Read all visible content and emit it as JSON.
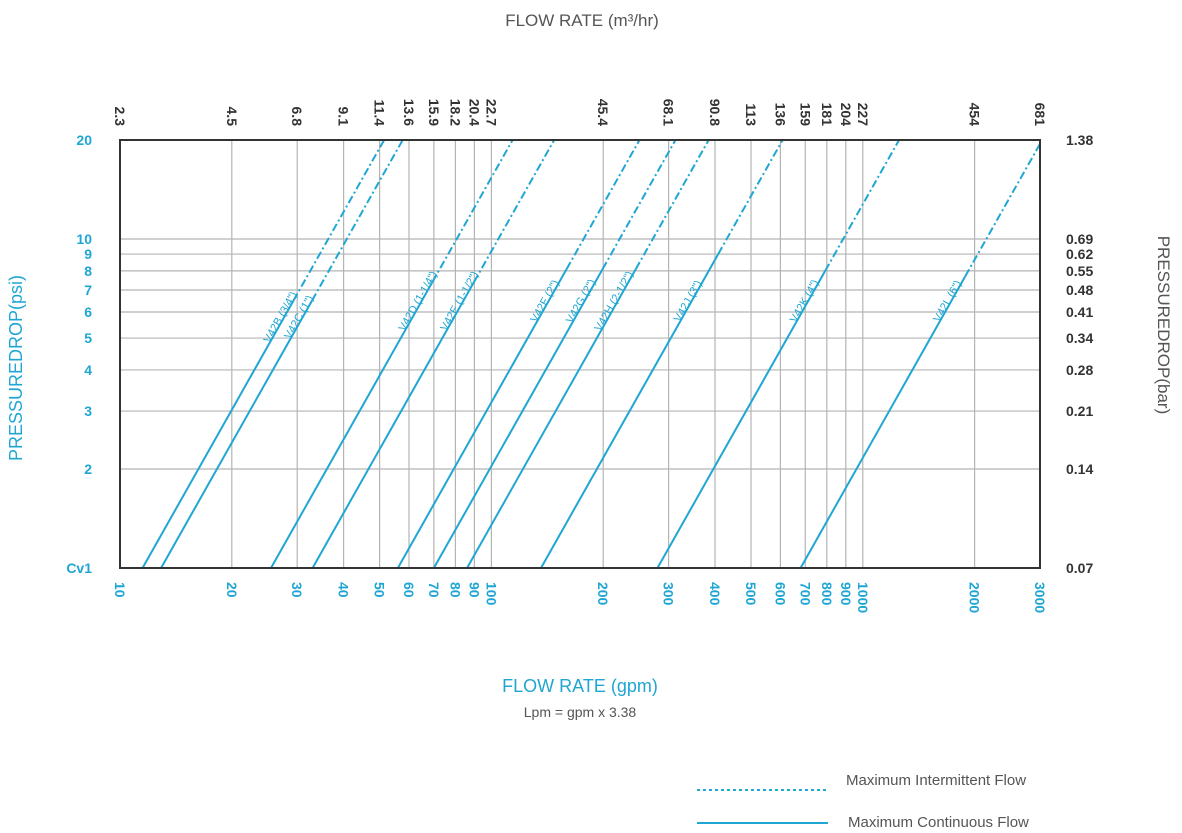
{
  "colors": {
    "series": "#1fa6d3",
    "grid": "#b4b4b4",
    "frame": "#333333",
    "dark_text": "#333333",
    "muted_text": "#555555"
  },
  "chart_data": {
    "type": "line",
    "title": "",
    "top_axis_label": "FLOW RATE (m³/hr)",
    "xlabel": "FLOW RATE (gpm)",
    "xlabel_note": "Lpm = gpm x 3.38",
    "ylabel_left": "PRESSUREDROP(psi)",
    "ylabel_right": "PRESSUREDROP(bar)",
    "x_scale": "log",
    "y_scale": "log",
    "xlim": [
      10,
      3000
    ],
    "ylim": [
      1,
      20
    ],
    "grid": true,
    "x_ticks": [
      10,
      20,
      30,
      40,
      50,
      60,
      70,
      80,
      90,
      100,
      200,
      300,
      400,
      500,
      600,
      700,
      800,
      900,
      1000,
      2000,
      3000
    ],
    "x_tick_labels": [
      "10",
      "20",
      "30",
      "40",
      "50",
      "60",
      "70",
      "80",
      "90",
      "100",
      "200",
      "300",
      "400",
      "500",
      "600",
      "700",
      "800",
      "900",
      "1000",
      "2000",
      "3000"
    ],
    "top_ticks": [
      {
        "gpm": 10,
        "label": "2.3"
      },
      {
        "gpm": 20,
        "label": "4.5"
      },
      {
        "gpm": 30,
        "label": "6.8"
      },
      {
        "gpm": 40,
        "label": "9.1"
      },
      {
        "gpm": 50,
        "label": "11.4"
      },
      {
        "gpm": 60,
        "label": "13.6"
      },
      {
        "gpm": 70,
        "label": "15.9"
      },
      {
        "gpm": 80,
        "label": "18.2"
      },
      {
        "gpm": 90,
        "label": "20.4"
      },
      {
        "gpm": 100,
        "label": "22.7"
      },
      {
        "gpm": 200,
        "label": "45.4"
      },
      {
        "gpm": 300,
        "label": "68.1"
      },
      {
        "gpm": 400,
        "label": "90.8"
      },
      {
        "gpm": 500,
        "label": "113"
      },
      {
        "gpm": 600,
        "label": "136"
      },
      {
        "gpm": 700,
        "label": "159"
      },
      {
        "gpm": 800,
        "label": "181"
      },
      {
        "gpm": 900,
        "label": "204"
      },
      {
        "gpm": 1000,
        "label": "227"
      },
      {
        "gpm": 2000,
        "label": "454"
      },
      {
        "gpm": 3000,
        "label": "681"
      }
    ],
    "y_ticks_left": [
      {
        "value": 1,
        "label": "Cv1"
      },
      {
        "value": 2,
        "label": "2"
      },
      {
        "value": 3,
        "label": "3"
      },
      {
        "value": 4,
        "label": "4"
      },
      {
        "value": 5,
        "label": "5"
      },
      {
        "value": 6,
        "label": "6"
      },
      {
        "value": 7,
        "label": "7"
      },
      {
        "value": 8,
        "label": "8"
      },
      {
        "value": 9,
        "label": "9"
      },
      {
        "value": 10,
        "label": "10"
      },
      {
        "value": 20,
        "label": "20"
      }
    ],
    "y_ticks_right": [
      {
        "value": 1,
        "label": "0.07"
      },
      {
        "value": 2,
        "label": "0.14"
      },
      {
        "value": 3,
        "label": "0.21"
      },
      {
        "value": 4,
        "label": "0.28"
      },
      {
        "value": 5,
        "label": "0.34"
      },
      {
        "value": 6,
        "label": "0.41"
      },
      {
        "value": 7,
        "label": "0.48"
      },
      {
        "value": 8,
        "label": "0.55"
      },
      {
        "value": 9,
        "label": "0.62"
      },
      {
        "value": 10,
        "label": "0.69"
      },
      {
        "value": 20,
        "label": "1.38"
      }
    ],
    "series": [
      {
        "name": "V42B (3/4\")",
        "gpm_at_1psi": 11.5,
        "max_continuous_psi": 6.5
      },
      {
        "name": "V42C (1\")",
        "gpm_at_1psi": 12.9,
        "max_continuous_psi": 6.5
      },
      {
        "name": "V42D (1-1/4\")",
        "gpm_at_1psi": 25.5,
        "max_continuous_psi": 7.4
      },
      {
        "name": "V42E (1-1/2\")",
        "gpm_at_1psi": 33.0,
        "max_continuous_psi": 7.4
      },
      {
        "name": "V42F (2\")",
        "gpm_at_1psi": 56.0,
        "max_continuous_psi": 8.1
      },
      {
        "name": "V42G (2\")",
        "gpm_at_1psi": 70.0,
        "max_continuous_psi": 8.1
      },
      {
        "name": "V42H (2-1/2\")",
        "gpm_at_1psi": 86.0,
        "max_continuous_psi": 8.1
      },
      {
        "name": "V42J (3\")",
        "gpm_at_1psi": 136.0,
        "max_continuous_psi": 9.0
      },
      {
        "name": "V42K (4\")",
        "gpm_at_1psi": 280.0,
        "max_continuous_psi": 8.0
      },
      {
        "name": "V42L (6\")",
        "gpm_at_1psi": 680.0,
        "max_continuous_psi": 7.7
      }
    ]
  },
  "legend": {
    "intermittent_label": "Maximum Intermittent Flow",
    "continuous_label": "Maximum Continuous Flow"
  }
}
